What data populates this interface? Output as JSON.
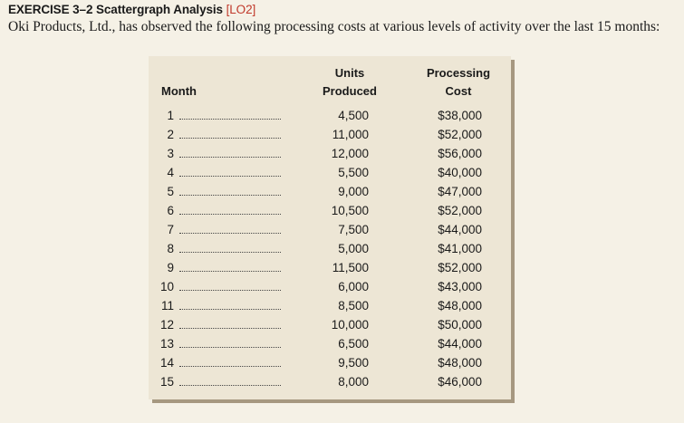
{
  "exercise": {
    "title": "EXERCISE 3–2 Scattergraph Analysis",
    "ref": "[LO2]"
  },
  "intro": "Oki Products, Ltd., has observed the following processing costs at various levels of activity over the last 15 months:",
  "table": {
    "columns": {
      "month": "Month",
      "units_line1": "Units",
      "units_line2": "Produced",
      "cost_line1": "Processing",
      "cost_line2": "Cost"
    },
    "rows": [
      {
        "month": "1",
        "units": "4,500",
        "cost": "$38,000"
      },
      {
        "month": "2",
        "units": "11,000",
        "cost": "$52,000"
      },
      {
        "month": "3",
        "units": "12,000",
        "cost": "$56,000"
      },
      {
        "month": "4",
        "units": "5,500",
        "cost": "$40,000"
      },
      {
        "month": "5",
        "units": "9,000",
        "cost": "$47,000"
      },
      {
        "month": "6",
        "units": "10,500",
        "cost": "$52,000"
      },
      {
        "month": "7",
        "units": "7,500",
        "cost": "$44,000"
      },
      {
        "month": "8",
        "units": "5,000",
        "cost": "$41,000"
      },
      {
        "month": "9",
        "units": "11,500",
        "cost": "$52,000"
      },
      {
        "month": "10",
        "units": "6,000",
        "cost": "$43,000"
      },
      {
        "month": "11",
        "units": "8,500",
        "cost": "$48,000"
      },
      {
        "month": "12",
        "units": "10,000",
        "cost": "$50,000"
      },
      {
        "month": "13",
        "units": "6,500",
        "cost": "$44,000"
      },
      {
        "month": "14",
        "units": "9,500",
        "cost": "$48,000"
      },
      {
        "month": "15",
        "units": "8,000",
        "cost": "$46,000"
      }
    ]
  }
}
